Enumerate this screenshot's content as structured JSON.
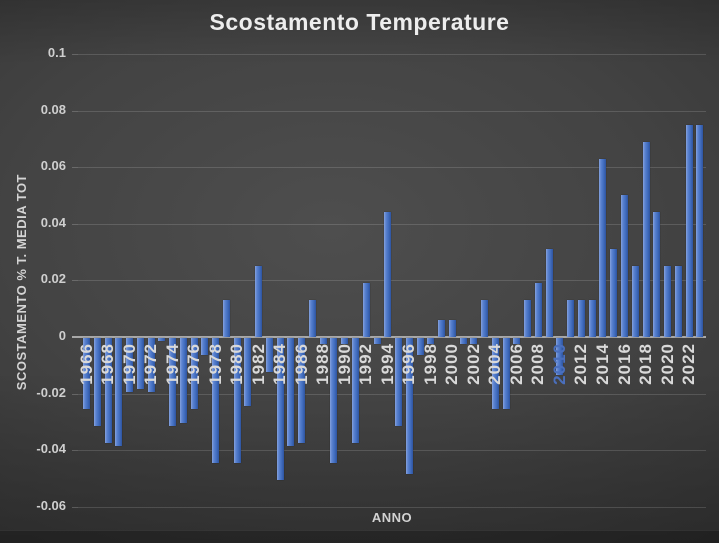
{
  "title": "Scostamento Temperature",
  "y_axis": {
    "title": "SCOSTAMENTO % T. MEDIA TOT",
    "tick_labels": [
      "0.1",
      "0.08",
      "0.06",
      "0.04",
      "0.02",
      "0",
      "-0.02",
      "-0.04",
      "-0.06"
    ],
    "tick_values": [
      0.1,
      0.08,
      0.06,
      0.04,
      0.02,
      0,
      -0.02,
      -0.04,
      -0.06
    ]
  },
  "x_axis": {
    "title": "ANNO",
    "visible_labels": [
      "1966",
      "1968",
      "1970",
      "1972",
      "1974",
      "1976",
      "1978",
      "1980",
      "1982",
      "1984",
      "1986",
      "1988",
      "1990",
      "1992",
      "1994",
      "1996",
      "1998",
      "2000",
      "2002",
      "2004",
      "2006",
      "2008",
      "2010",
      "2012",
      "2014",
      "2016",
      "2018",
      "2020",
      "2022"
    ]
  },
  "chart_data": {
    "type": "bar",
    "title": "Scostamento Temperature",
    "xlabel": "ANNO",
    "ylabel": "SCOSTAMENTO % T. MEDIA TOT",
    "ylim": [
      -0.06,
      0.1
    ],
    "grid": true,
    "label_every": 2,
    "categories": [
      1966,
      1967,
      1968,
      1969,
      1970,
      1971,
      1972,
      1973,
      1974,
      1975,
      1976,
      1977,
      1978,
      1979,
      1980,
      1981,
      1982,
      1983,
      1984,
      1985,
      1986,
      1987,
      1988,
      1989,
      1990,
      1991,
      1992,
      1993,
      1994,
      1995,
      1996,
      1997,
      1998,
      1999,
      2000,
      2001,
      2002,
      2003,
      2004,
      2005,
      2006,
      2007,
      2008,
      2009,
      2010,
      2011,
      2012,
      2013,
      2014,
      2015,
      2016,
      2017,
      2018,
      2019,
      2020,
      2021,
      2022,
      2023
    ],
    "values": [
      -0.025,
      -0.031,
      -0.037,
      -0.038,
      -0.019,
      -0.018,
      -0.019,
      -0.001,
      -0.031,
      -0.03,
      -0.025,
      -0.006,
      -0.044,
      0.013,
      -0.044,
      -0.024,
      0.025,
      -0.012,
      -0.05,
      -0.038,
      -0.037,
      0.013,
      -0.002,
      -0.044,
      -0.002,
      -0.037,
      0.019,
      -0.002,
      0.044,
      -0.031,
      -0.048,
      -0.006,
      -0.002,
      0.006,
      0.006,
      -0.002,
      -0.002,
      0.013,
      -0.025,
      -0.025,
      -0.002,
      0.013,
      0.019,
      0.031,
      -0.013,
      0.013,
      0.013,
      0.013,
      0.063,
      0.031,
      0.05,
      0.025,
      0.069,
      0.044,
      0.025,
      0.025,
      0.075,
      0.075
    ]
  },
  "colors": {
    "bar": "#4472c4",
    "bar_light_edge": "#86a3de",
    "bar_dark_edge": "#2e549f",
    "background_center": "#4e4e4e",
    "background_edge": "#272727",
    "gridline": "#585858",
    "zero_line": "#a8a8a8",
    "text": "#d9d9d9",
    "highlighted_x_label": {
      "year": "2010",
      "color": "#4a6fbd"
    }
  }
}
